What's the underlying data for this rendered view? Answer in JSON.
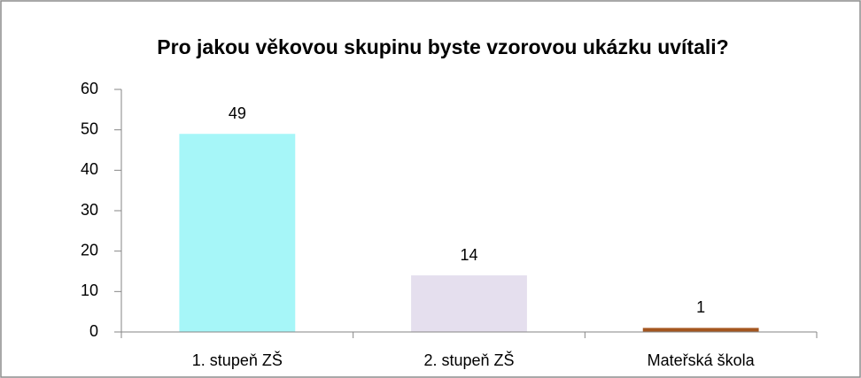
{
  "chart_data": {
    "type": "bar",
    "title": "Pro jakou věkovou skupinu byste vzorovou ukázku uvítali?",
    "categories": [
      "1. stupeň ZŠ",
      "2. stupeň ZŠ",
      "Mateřská škola"
    ],
    "values": [
      49,
      14,
      1
    ],
    "colors": [
      "#a6f6f8",
      "#e5dfee",
      "#a4561f"
    ],
    "ylim": [
      0,
      60
    ],
    "yticks": [
      0,
      10,
      20,
      30,
      40,
      50,
      60
    ],
    "grid": false
  }
}
